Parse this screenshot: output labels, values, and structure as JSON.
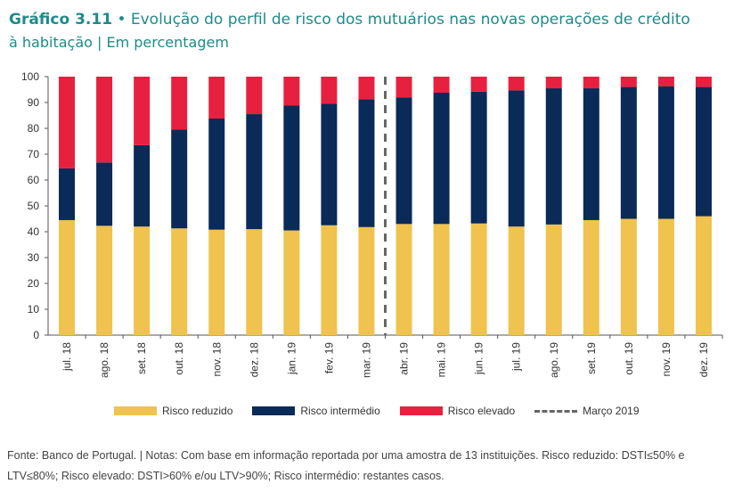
{
  "header": {
    "figure_number": "Gráfico 3.11",
    "bullet": "•",
    "title_line1": "Evolução do perfil de risco dos mutuários nas novas operações de crédito",
    "title_line2": "à habitação",
    "divider": "|",
    "unit": "Em percentagem"
  },
  "colors": {
    "reduzido": "#f0c24e",
    "intermedio": "#0a2a57",
    "elevado": "#e8203f",
    "reference_line": "#666666",
    "title": "#1f8a8a"
  },
  "chart_data": {
    "type": "bar",
    "stacked": true,
    "categories": [
      "jul. 18",
      "ago. 18",
      "set. 18",
      "out. 18",
      "nov. 18",
      "dez. 18",
      "jan. 19",
      "fev. 19",
      "mar. 19",
      "abr. 19",
      "mai. 19",
      "jun. 19",
      "jul. 19",
      "ago. 19",
      "set. 19",
      "out. 19",
      "nov. 19",
      "dez. 19"
    ],
    "series": [
      {
        "name": "Risco reduzido",
        "values": [
          44.5,
          42.3,
          42,
          41.3,
          40.8,
          41,
          40.5,
          42.5,
          41.8,
          43,
          43,
          43.2,
          42,
          42.8,
          44.5,
          45,
          45,
          46
        ]
      },
      {
        "name": "Risco intermédio",
        "values": [
          20,
          24.5,
          31.5,
          38.2,
          43,
          44.5,
          48.3,
          47,
          49.5,
          49,
          50.8,
          51,
          52.7,
          52.7,
          51,
          51,
          51.2,
          50
        ]
      },
      {
        "name": "Risco elevado",
        "values": [
          35.5,
          33.2,
          26.5,
          20.5,
          16.2,
          14.5,
          11.2,
          10.5,
          8.7,
          8,
          6.2,
          5.8,
          5.3,
          4.5,
          4.5,
          4,
          3.8,
          4
        ]
      }
    ],
    "reference_line": {
      "label": "Março 2019",
      "position_between": [
        "mar. 19",
        "abr. 19"
      ]
    },
    "ylim": [
      0,
      100
    ],
    "yticks": [
      "0",
      "10",
      "20",
      "30",
      "40",
      "50",
      "60",
      "70",
      "80",
      "90",
      "100"
    ],
    "grid": false,
    "legend_position": "bottom"
  },
  "legend": {
    "items": [
      {
        "label": "Risco reduzido",
        "color_key": "reduzido"
      },
      {
        "label": "Risco intermédio",
        "color_key": "intermedio"
      },
      {
        "label": "Risco elevado",
        "color_key": "elevado"
      }
    ],
    "reference_label": "Março 2019"
  },
  "footer": {
    "note_line1": "Fonte: Banco de Portugal.  |  Notas: Com base em informação reportada por uma amostra de 13 instituições. Risco reduzido: DSTI≤50% e",
    "note_line2": "LTV≤80%; Risco elevado: DSTI>60% e/ou LTV>90%; Risco intermédio: restantes casos."
  }
}
